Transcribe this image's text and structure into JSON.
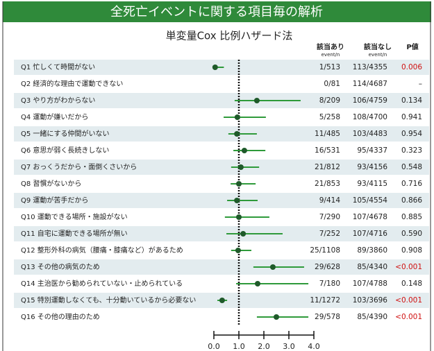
{
  "chart_data": {
    "type": "forest",
    "title": "全死亡イベントに関する項目毎の解析",
    "subtitle": "単変量Cox 比例ハザード法",
    "column_headers": [
      {
        "title": "該当あり",
        "sub": "event/n"
      },
      {
        "title": "該当なし",
        "sub": "event/n"
      },
      {
        "title": "P値"
      }
    ],
    "rows": [
      {
        "label": "Q1 忙しくて時間がない",
        "hr": 0.05,
        "ci": [
          0.01,
          0.4
        ],
        "exposed": "1/513",
        "unexposed": "113/4355",
        "p": "0.006",
        "p_color": "#d01010"
      },
      {
        "label": "Q2 経済的な理由で運動できない",
        "hr": null,
        "ci": [
          null,
          null
        ],
        "exposed": "0/81",
        "unexposed": "114/4687",
        "p": "–",
        "p_color": "#222222"
      },
      {
        "label": "Q3 やり方がわからない",
        "hr": 1.72,
        "ci": [
          0.83,
          3.47
        ],
        "exposed": "8/209",
        "unexposed": "106/4759",
        "p": "0.134",
        "p_color": "#222222"
      },
      {
        "label": "Q4 運動が嫌いだから",
        "hr": 0.94,
        "ci": [
          0.39,
          2.08
        ],
        "exposed": "5/258",
        "unexposed": "108/4700",
        "p": "0.941",
        "p_color": "#222222"
      },
      {
        "label": "Q5 一緒にする仲間がいない",
        "hr": 0.92,
        "ci": [
          0.58,
          1.72
        ],
        "exposed": "11/485",
        "unexposed": "103/4483",
        "p": "0.954",
        "p_color": "#222222"
      },
      {
        "label": "Q6 意思が弱く長続きしない",
        "hr": 1.22,
        "ci": [
          0.78,
          2.06
        ],
        "exposed": "16/531",
        "unexposed": "95/4337",
        "p": "0.323",
        "p_color": "#222222"
      },
      {
        "label": "Q7 おっくうだから・面倒くさいから",
        "hr": 1.08,
        "ci": [
          0.69,
          1.81
        ],
        "exposed": "21/812",
        "unexposed": "93/4156",
        "p": "0.548",
        "p_color": "#222222"
      },
      {
        "label": "Q8 習慣がないから",
        "hr": 1.0,
        "ci": [
          0.67,
          1.67
        ],
        "exposed": "21/853",
        "unexposed": "93/4115",
        "p": "0.716",
        "p_color": "#222222"
      },
      {
        "label": "Q9 運動が苦手だから",
        "hr": 0.92,
        "ci": [
          0.53,
          1.75
        ],
        "exposed": "9/414",
        "unexposed": "105/4554",
        "p": "0.866",
        "p_color": "#222222"
      },
      {
        "label": "Q10 運動できる場所・施設がない",
        "hr": 1.0,
        "ci": [
          0.44,
          2.22
        ],
        "exposed": "7/290",
        "unexposed": "107/4678",
        "p": "0.885",
        "p_color": "#222222"
      },
      {
        "label": "Q11 自宅に運動できる場所が無い",
        "hr": 1.17,
        "ci": [
          0.5,
          2.75
        ],
        "exposed": "7/252",
        "unexposed": "107/4716",
        "p": "0.590",
        "p_color": "#222222"
      },
      {
        "label": "Q12 整形外科の病気（腰痛・膝痛など）があるため",
        "hr": 0.97,
        "ci": [
          0.69,
          1.5
        ],
        "exposed": "25/1108",
        "unexposed": "89/3860",
        "p": "0.908",
        "p_color": "#222222"
      },
      {
        "label": "Q13 その他の病気のため",
        "hr": 2.36,
        "ci": [
          1.58,
          3.61
        ],
        "exposed": "29/628",
        "unexposed": "85/4340",
        "p": "<0.001",
        "p_color": "#d01010"
      },
      {
        "label": "Q14 主治医から勧められていない・止められている",
        "hr": 1.75,
        "ci": [
          0.89,
          3.78
        ],
        "exposed": "7/180",
        "unexposed": "107/4788",
        "p": "0.148",
        "p_color": "#222222"
      },
      {
        "label": "Q15 特別運動しなくても、十分動いているから必要ない",
        "hr": 0.33,
        "ci": [
          0.14,
          0.53
        ],
        "exposed": "11/1272",
        "unexposed": "103/3696",
        "p": "<0.001",
        "p_color": "#d01010"
      },
      {
        "label": "Q16 その他の理由のため",
        "hr": 2.5,
        "ci": [
          1.72,
          3.78
        ],
        "exposed": "29/578",
        "unexposed": "85/4390",
        "p": "<0.001",
        "p_color": "#d01010"
      }
    ],
    "xlim": [
      0,
      4
    ],
    "xticks": [
      {
        "value": 0,
        "label": "0.0"
      },
      {
        "value": 1,
        "label": "1.0"
      },
      {
        "value": 2,
        "label": "2.0"
      },
      {
        "value": 3,
        "label": "3.0"
      },
      {
        "value": 4,
        "label": "4.0"
      }
    ],
    "reference_line": 1,
    "marker_color": "#1f5a2a",
    "ci_color": "#2e9a3a",
    "banner_color": "#2f8a3a"
  }
}
